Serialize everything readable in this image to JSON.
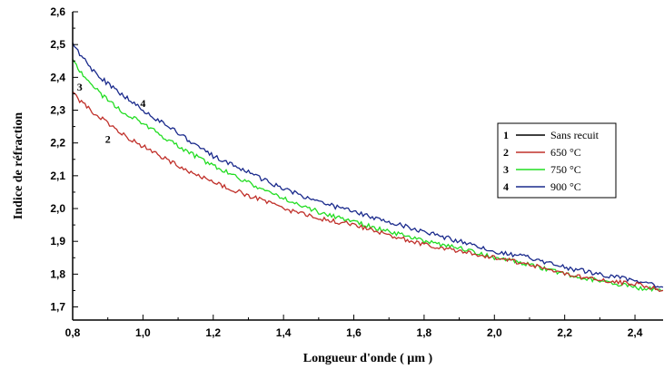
{
  "chart_data": {
    "type": "line",
    "title": "",
    "xlabel": "Longueur d'onde ( µm )",
    "ylabel": "Indice de réfraction",
    "xlim": [
      0.8,
      2.48
    ],
    "ylim": [
      1.66,
      2.6
    ],
    "xticks": [
      0.8,
      1.0,
      1.2,
      1.4,
      1.6,
      1.8,
      2.0,
      2.2,
      2.4
    ],
    "xtick_labels": [
      "0,8",
      "1,0",
      "1,2",
      "1,4",
      "1,6",
      "1,8",
      "2,0",
      "2,2",
      "2,4"
    ],
    "yticks": [
      1.7,
      1.8,
      1.9,
      2.0,
      2.1,
      2.2,
      2.3,
      2.4,
      2.5,
      2.6
    ],
    "ytick_labels": [
      "1,7",
      "1,8",
      "1,9",
      "2,0",
      "2,1",
      "2,2",
      "2,3",
      "2,4",
      "2,5",
      "2,6"
    ],
    "grid": false,
    "legend_position": "right",
    "x": [
      0.8,
      0.85,
      0.9,
      0.95,
      1.0,
      1.1,
      1.2,
      1.3,
      1.4,
      1.5,
      1.6,
      1.7,
      1.8,
      1.9,
      2.0,
      2.1,
      2.2,
      2.3,
      2.4,
      2.48
    ],
    "series": [
      {
        "number": "1",
        "name": "Sans recuit",
        "color": "#000000",
        "values": null
      },
      {
        "number": "2",
        "name": "650 °C",
        "color": "#c0302a",
        "values": [
          2.35,
          2.3,
          2.26,
          2.22,
          2.19,
          2.13,
          2.08,
          2.04,
          2.0,
          1.97,
          1.95,
          1.92,
          1.89,
          1.87,
          1.85,
          1.83,
          1.8,
          1.78,
          1.77,
          1.75
        ]
      },
      {
        "number": "3",
        "name": "750 °C",
        "color": "#22dd22",
        "values": [
          2.45,
          2.38,
          2.33,
          2.29,
          2.26,
          2.19,
          2.13,
          2.08,
          2.03,
          1.99,
          1.96,
          1.93,
          1.9,
          1.88,
          1.85,
          1.83,
          1.8,
          1.78,
          1.76,
          1.75
        ]
      },
      {
        "number": "4",
        "name": "900 °C",
        "color": "#1a2a8c",
        "values": [
          2.5,
          2.43,
          2.38,
          2.34,
          2.3,
          2.23,
          2.16,
          2.11,
          2.06,
          2.02,
          1.99,
          1.96,
          1.93,
          1.9,
          1.87,
          1.85,
          1.82,
          1.8,
          1.78,
          1.76
        ]
      }
    ],
    "annotations": [
      {
        "text": "2",
        "x": 0.9,
        "y": 2.2
      },
      {
        "text": "3",
        "x": 0.82,
        "y": 2.36
      },
      {
        "text": "4",
        "x": 1.0,
        "y": 2.31
      }
    ]
  }
}
